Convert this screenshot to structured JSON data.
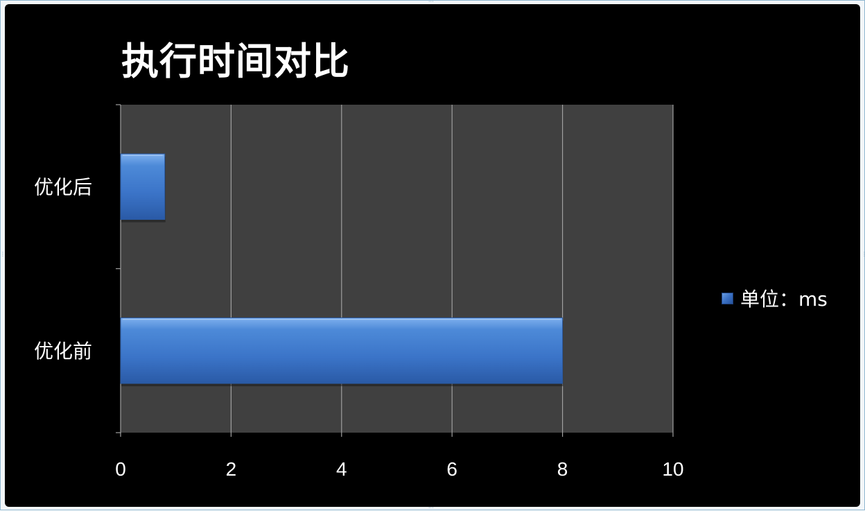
{
  "chart_data": {
    "type": "bar",
    "orientation": "horizontal",
    "title": "执行时间对比",
    "categories": [
      "优化后",
      "优化前"
    ],
    "series": [
      {
        "name": "单位：ms",
        "values": [
          0.8,
          8
        ],
        "color": "#3f7bd2"
      }
    ],
    "xlim": [
      0,
      10
    ],
    "xticks": [
      "0",
      "2",
      "4",
      "6",
      "8",
      "10"
    ],
    "xlabel": "",
    "ylabel": "",
    "grid": true,
    "legend_position": "right",
    "colors": {
      "background": "#000000",
      "plot_area": "#404040",
      "gridline": "#a0a0a0",
      "bar": "#3f7bd2",
      "text": "#ffffff"
    }
  }
}
